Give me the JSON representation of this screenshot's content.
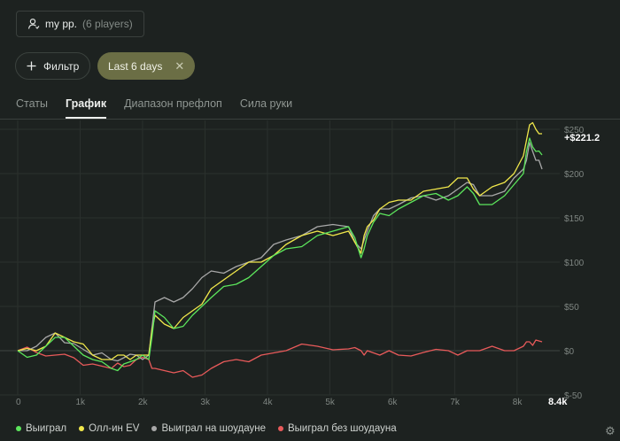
{
  "player": {
    "icon": "user-icon",
    "name": "my pp.",
    "count": "(6 players)"
  },
  "filter": {
    "label": "Фильтр",
    "icon": "plus-icon"
  },
  "date_chip": {
    "label": "Last 6 days",
    "icon": "close-icon"
  },
  "tabs": [
    {
      "label": "Статы",
      "active": false
    },
    {
      "label": "График",
      "active": true
    },
    {
      "label": "Диапазон префлоп",
      "active": false
    },
    {
      "label": "Сила руки",
      "active": false
    }
  ],
  "legend": [
    {
      "label": "Выиграл",
      "color": "#5ce65c"
    },
    {
      "label": "Олл-ин EV",
      "color": "#f1e84b"
    },
    {
      "label": "Выиграл на шоудауне",
      "color": "#a8a8a8"
    },
    {
      "label": "Выиграл без шоудауна",
      "color": "#e85a5a"
    }
  ],
  "settings_icon": "gear-icon",
  "chart_data": {
    "type": "line",
    "end_label": "+$221.2",
    "x_end_label": "8.4k",
    "xlim": [
      0,
      8400
    ],
    "ylim": [
      -50,
      260
    ],
    "x_ticks": [
      0,
      1000,
      2000,
      3000,
      4000,
      5000,
      6000,
      7000,
      8000
    ],
    "x_tick_labels": [
      "0",
      "1k",
      "2k",
      "3k",
      "4k",
      "5k",
      "6k",
      "7k",
      "8k"
    ],
    "y_ticks": [
      250,
      200,
      150,
      100,
      50,
      0,
      -50
    ],
    "y_tick_labels": [
      "$250",
      "$200",
      "$150",
      "$100",
      "$50",
      "$0",
      "$-50"
    ],
    "x": [
      0,
      300,
      600,
      900,
      1200,
      1500,
      1700,
      1900,
      2100,
      2200,
      2500,
      2800,
      3100,
      3500,
      3900,
      4300,
      4800,
      5300,
      5500,
      5600,
      5800,
      6100,
      6500,
      6900,
      7200,
      7400,
      7800,
      8100,
      8200,
      8300,
      8400
    ],
    "series": [
      {
        "name": "Выиграл",
        "color": "#5ce65c",
        "values": [
          0,
          -5,
          15,
          5,
          -10,
          -20,
          -15,
          -10,
          -10,
          45,
          25,
          40,
          60,
          75,
          95,
          115,
          130,
          140,
          105,
          130,
          155,
          160,
          175,
          170,
          185,
          165,
          175,
          200,
          240,
          225,
          221
        ]
      },
      {
        "name": "Олл-ин EV",
        "color": "#f1e84b",
        "values": [
          0,
          0,
          20,
          10,
          -5,
          -10,
          -5,
          -5,
          -5,
          40,
          25,
          45,
          70,
          90,
          100,
          120,
          135,
          135,
          110,
          140,
          160,
          170,
          180,
          185,
          195,
          175,
          190,
          220,
          255,
          250,
          245
        ]
      },
      {
        "name": "Выиграл на шоудауне",
        "color": "#a8a8a8",
        "values": [
          0,
          5,
          20,
          8,
          -5,
          -10,
          -8,
          -5,
          -5,
          55,
          55,
          70,
          90,
          95,
          105,
          125,
          140,
          140,
          115,
          135,
          160,
          165,
          175,
          175,
          190,
          175,
          180,
          205,
          235,
          215,
          205
        ]
      },
      {
        "name": "Выиграл без шоудауна",
        "color": "#e85a5a",
        "values": [
          0,
          -2,
          -5,
          -8,
          -15,
          -20,
          -18,
          -10,
          -10,
          -20,
          -25,
          -30,
          -20,
          -10,
          -5,
          0,
          5,
          2,
          0,
          0,
          -5,
          -5,
          -2,
          0,
          0,
          0,
          0,
          5,
          10,
          12,
          10
        ]
      }
    ]
  }
}
